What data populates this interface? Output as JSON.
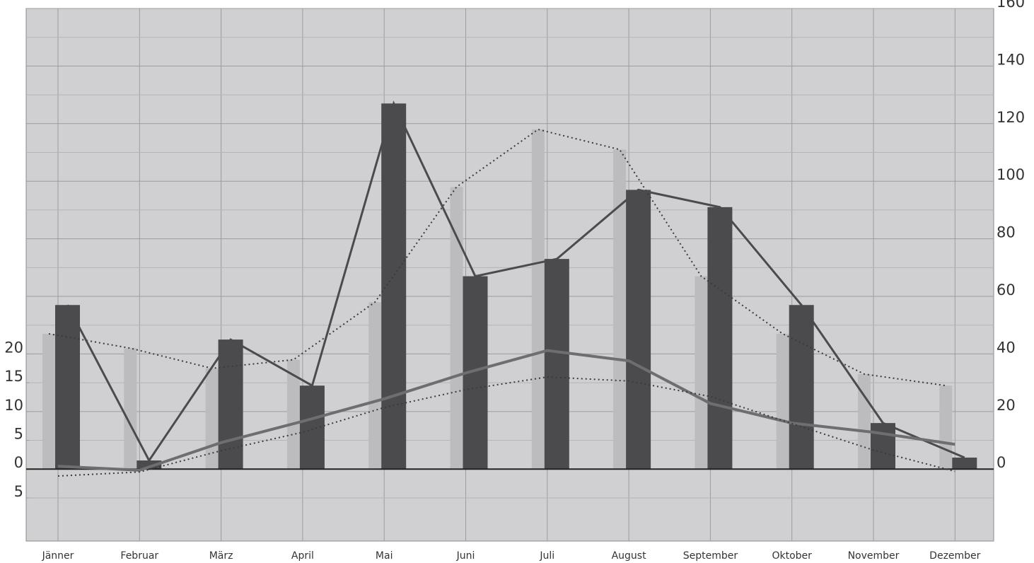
{
  "chart_data": {
    "type": "combo",
    "categories": [
      "Jänner",
      "Februar",
      "März",
      "April",
      "Mai",
      "Juni",
      "Juli",
      "August",
      "September",
      "Oktober",
      "November",
      "Dezember"
    ],
    "series": [
      {
        "type": "bar",
        "axis": "y2",
        "color": "#bcbcbe",
        "line_color": "#3a3a3a",
        "line_style": "dotted",
        "values": [
          47,
          42,
          35,
          38,
          58,
          98,
          118,
          111,
          67,
          47,
          33,
          29
        ]
      },
      {
        "type": "bar",
        "axis": "y2",
        "color": "#4b4b4d",
        "line_color": "#4b4b4d",
        "line_style": "solid",
        "values": [
          57,
          3,
          45,
          29,
          127,
          67,
          73,
          97,
          91,
          57,
          16,
          4
        ]
      },
      {
        "type": "line",
        "axis": "y",
        "color": "#6e6e70",
        "line_style": "solid",
        "values": [
          0.5,
          -0.2,
          4.6,
          8.3,
          12.2,
          16.7,
          20.6,
          18.8,
          11.4,
          8.0,
          6.4,
          4.3
        ]
      },
      {
        "type": "line",
        "axis": "y",
        "color": "#3a3a3a",
        "line_style": "dotted",
        "values": [
          -1.2,
          -0.5,
          3.2,
          6.4,
          10.7,
          13.8,
          16.0,
          15.3,
          12.6,
          7.9,
          3.3,
          -0.4
        ]
      }
    ],
    "ylim": [
      -12.5,
      80
    ],
    "yticks": [
      {
        "value": -5,
        "label": "5"
      },
      0,
      5,
      10,
      15,
      20
    ],
    "y2lim": [
      -25,
      160
    ],
    "y2ticks": [
      0,
      20,
      40,
      60,
      80,
      100,
      120,
      140,
      160
    ],
    "grid": true
  }
}
